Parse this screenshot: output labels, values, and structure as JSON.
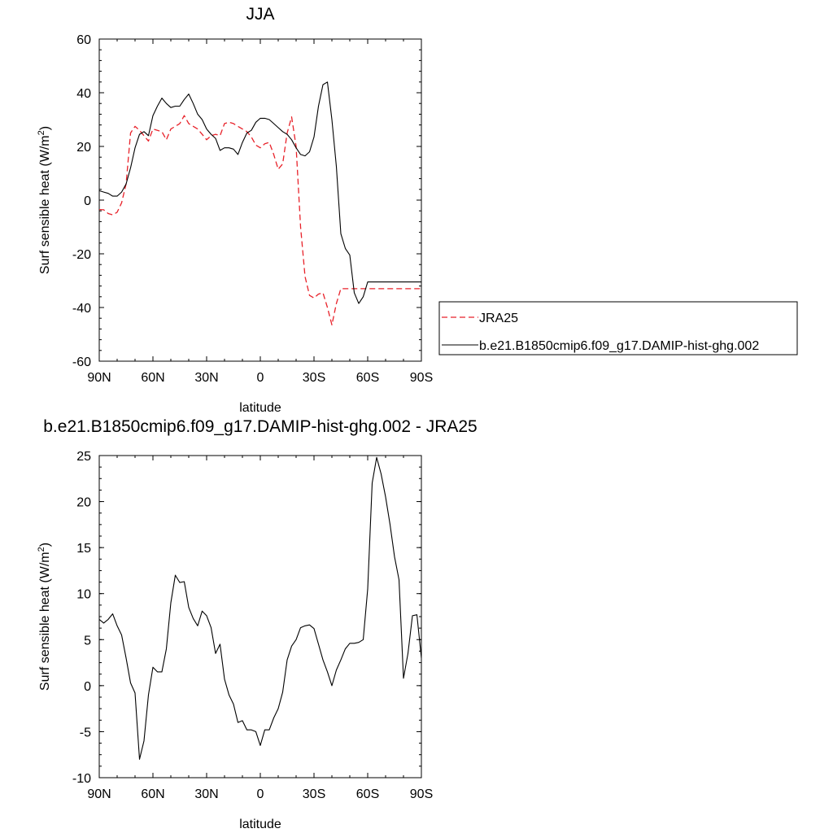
{
  "chart_data": [
    {
      "type": "line",
      "title": "JJA",
      "xlabel": "latitude",
      "ylabel": "Surf sensible heat (W/m",
      "ylabel_sup": "2",
      "ylabel_end": ")",
      "xlim": [
        90,
        -90
      ],
      "ylim": [
        -60,
        60
      ],
      "yticks": [
        60,
        40,
        20,
        0,
        -20,
        -40,
        -60
      ],
      "ytick_labels": [
        "60",
        "40",
        "20",
        "0",
        "-20",
        "-40",
        "-60"
      ],
      "xticks": [
        90,
        60,
        30,
        0,
        -30,
        -60,
        -90
      ],
      "xtick_labels": [
        "90N",
        "60N",
        "30N",
        "0",
        "30S",
        "60S",
        "90S"
      ],
      "legend": "right",
      "grid": false,
      "x": [
        90,
        87.5,
        85,
        82.5,
        80,
        77.5,
        75,
        72.5,
        70,
        67.5,
        65,
        62.5,
        60,
        57.5,
        55,
        52.5,
        50,
        47.5,
        45,
        42.5,
        40,
        37.5,
        35,
        32.5,
        30,
        27.5,
        25,
        22.5,
        20,
        17.5,
        15,
        12.5,
        10,
        7.5,
        5,
        2.5,
        0,
        -2.5,
        -5,
        -7.5,
        -10,
        -12.5,
        -15,
        -17.5,
        -20,
        -22.5,
        -25,
        -27.5,
        -30,
        -32.5,
        -35,
        -37.5,
        -40,
        -42.5,
        -45,
        -47.5,
        -50,
        -52.5,
        -55,
        -57.5,
        -60,
        -62.5,
        -65,
        -67.5,
        -70,
        -72.5,
        -75,
        -77.5,
        -80,
        -82.5,
        -85,
        -87.5,
        -90
      ],
      "series": [
        {
          "name": "JRA25",
          "color": "#e8222a",
          "dash": true,
          "values": [
            -3.5,
            -3.6,
            -5.0,
            -5.5,
            -4.5,
            -1.0,
            6.0,
            25.0,
            27.5,
            26.0,
            24.0,
            22.0,
            26.5,
            26.0,
            25.5,
            22.5,
            26.5,
            27.5,
            28.5,
            31.5,
            28.5,
            27.5,
            26.5,
            24.5,
            22.5,
            24.0,
            24.5,
            24.0,
            28.5,
            29.0,
            28.5,
            27.5,
            26.5,
            25.5,
            23.5,
            20.5,
            19.5,
            21.0,
            21.5,
            17.0,
            11.5,
            13.5,
            25.0,
            31.0,
            20.0,
            -10.0,
            -28.5,
            -35.5,
            -36.5,
            -35.0,
            -34.5,
            -40.0,
            -46.5,
            -38.5,
            -33.0,
            -33.0,
            -33.0,
            -33.0,
            -33.0,
            -33.0,
            -33.0,
            -33.0,
            -33.0,
            -33.0,
            -33.0,
            -33.0,
            -33.0,
            -33.0,
            -33.0,
            -33.0,
            -33.0,
            -33.0,
            -33.0
          ]
        },
        {
          "name": "b.e21.B1850cmip6.f09_g17.DAMIP-hist-ghg.002",
          "color": "#000000",
          "dash": false,
          "values": [
            3.5,
            3.0,
            2.5,
            1.5,
            1.5,
            3.0,
            6.0,
            12.0,
            19.5,
            24.5,
            25.5,
            24.0,
            31.5,
            35.0,
            38.0,
            36.0,
            34.5,
            35.0,
            35.0,
            37.5,
            39.5,
            36.0,
            32.0,
            30.0,
            26.5,
            24.5,
            23.0,
            18.5,
            19.5,
            19.5,
            19.0,
            17.0,
            21.5,
            25.0,
            26.0,
            29.0,
            30.5,
            30.5,
            30.0,
            28.5,
            27.0,
            25.5,
            24.5,
            22.5,
            19.5,
            17.0,
            16.5,
            18.0,
            23.5,
            35.0,
            43.0,
            44.0,
            30.0,
            12.5,
            -12.5,
            -18.0,
            -20.5,
            -34.5,
            -38.5,
            -36.0,
            -30.5,
            -30.5,
            -30.5,
            -30.5,
            -30.5,
            -30.5,
            -30.5,
            -30.5,
            -30.5,
            -30.5,
            -30.5,
            -30.5,
            -30.5
          ]
        }
      ]
    },
    {
      "type": "line",
      "title": "b.e21.B1850cmip6.f09_g17.DAMIP-hist-ghg.002 - JRA25",
      "xlabel": "latitude",
      "ylabel": "Surf sensible heat (W/m",
      "ylabel_sup": "2",
      "ylabel_end": ")",
      "xlim": [
        90,
        -90
      ],
      "ylim": [
        -10,
        25
      ],
      "yticks": [
        25,
        20,
        15,
        10,
        5,
        0,
        -5,
        -10
      ],
      "ytick_labels": [
        "25",
        "20",
        "15",
        "10",
        "5",
        "0",
        "-5",
        "-10"
      ],
      "xticks": [
        90,
        60,
        30,
        0,
        -30,
        -60,
        -90
      ],
      "xtick_labels": [
        "90N",
        "60N",
        "30N",
        "0",
        "30S",
        "60S",
        "90S"
      ],
      "grid": false,
      "x": [
        90,
        87.5,
        85,
        82.5,
        80,
        77.5,
        75,
        72.5,
        70,
        67.5,
        65,
        62.5,
        60,
        57.5,
        55,
        52.5,
        50,
        47.5,
        45,
        42.5,
        40,
        37.5,
        35,
        32.5,
        30,
        27.5,
        25,
        22.5,
        20,
        17.5,
        15,
        12.5,
        10,
        7.5,
        5,
        2.5,
        0,
        -2.5,
        -5,
        -7.5,
        -10,
        -12.5,
        -15,
        -17.5,
        -20,
        -22.5,
        -25,
        -27.5,
        -30,
        -32.5,
        -35,
        -37.5,
        -40,
        -42.5,
        -45,
        -47.5,
        -50,
        -52.5,
        -55,
        -57.5,
        -60,
        -62.5,
        -65,
        -67.5,
        -70,
        -72.5,
        -75,
        -77.5,
        -80,
        -82.5,
        -85,
        -87.5,
        -90
      ],
      "series": [
        {
          "name": "",
          "color": "#000000",
          "dash": false,
          "values": [
            7.2,
            6.8,
            7.2,
            7.8,
            6.5,
            5.5,
            3.0,
            0.3,
            -0.8,
            -8.0,
            -6.0,
            -1.0,
            2.0,
            1.5,
            1.5,
            4.0,
            9.0,
            12.0,
            11.2,
            11.3,
            8.5,
            7.3,
            6.5,
            8.1,
            7.6,
            6.3,
            3.5,
            4.5,
            0.7,
            -1.0,
            -2.0,
            -4.0,
            -3.8,
            -4.8,
            -4.8,
            -5.0,
            -6.5,
            -4.8,
            -4.8,
            -3.5,
            -2.5,
            -0.7,
            2.8,
            4.3,
            5.0,
            6.3,
            6.5,
            6.6,
            6.2,
            4.5,
            2.8,
            1.5,
            0.0,
            1.7,
            2.8,
            4.0,
            4.6,
            4.6,
            4.7,
            5.0,
            10.5,
            22.0,
            24.8,
            23.0,
            20.5,
            17.5,
            14.0,
            11.5,
            0.8,
            3.5,
            7.6,
            7.7,
            3.0
          ]
        }
      ]
    }
  ]
}
